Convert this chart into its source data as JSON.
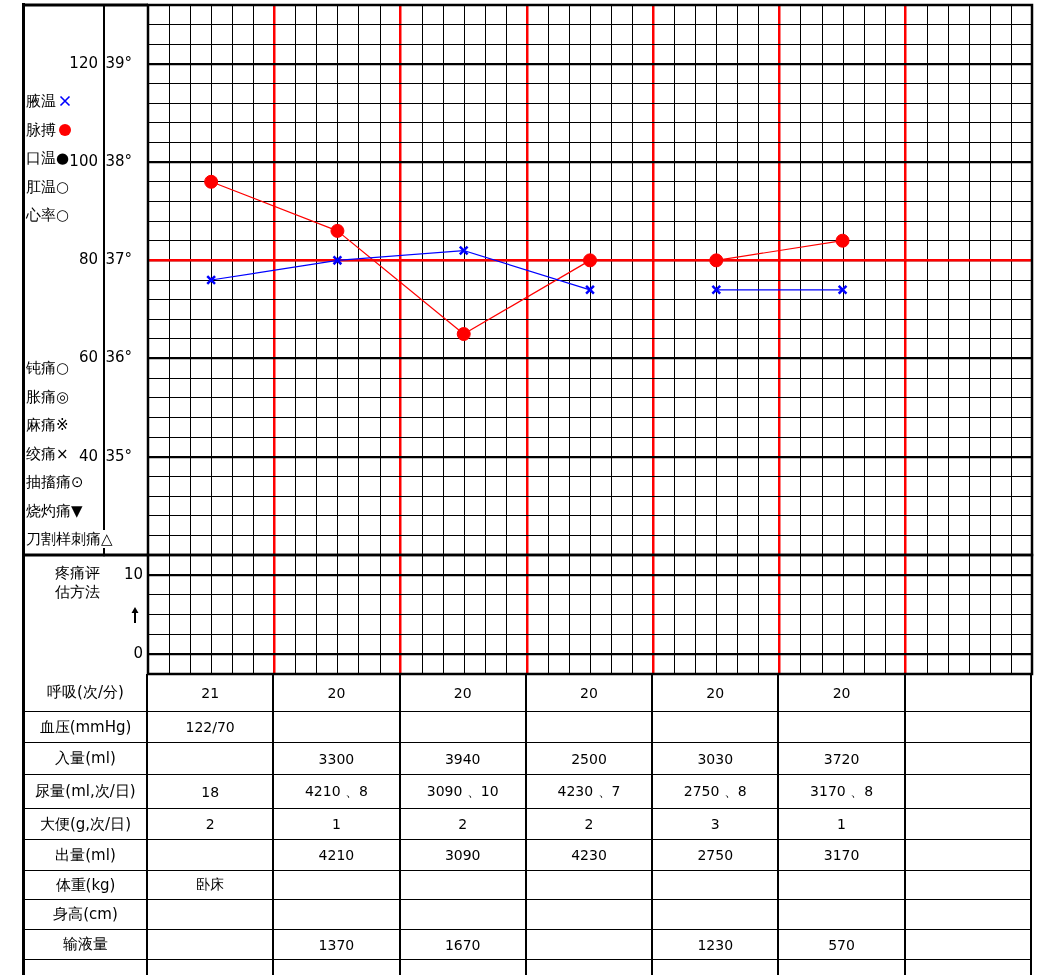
{
  "chart_data": [
    {
      "type": "line",
      "categories": [
        null,
        null,
        null,
        null,
        null,
        null,
        null
      ],
      "ylim": [
        34,
        39.6
      ],
      "yticks": [
        {
          "value": 34,
          "label": null
        },
        {
          "value": 34.2,
          "label": null
        },
        {
          "value": 34.4,
          "label": null
        },
        {
          "value": 34.6,
          "label": null
        },
        {
          "value": 34.8,
          "label": null
        },
        {
          "value": 35,
          "label": "35°"
        },
        {
          "value": 35.2,
          "label": null
        },
        {
          "value": 35.4,
          "label": null
        },
        {
          "value": 35.6,
          "label": null
        },
        {
          "value": 35.8,
          "label": null
        },
        {
          "value": 36,
          "label": "36°"
        },
        {
          "value": 36.2,
          "label": null
        },
        {
          "value": 36.4,
          "label": null
        },
        {
          "value": 36.6,
          "label": null
        },
        {
          "value": 36.8,
          "label": null
        },
        {
          "value": 37,
          "label": "37°"
        },
        {
          "value": 37.2,
          "label": null
        },
        {
          "value": 37.4,
          "label": null
        },
        {
          "value": 37.6,
          "label": null
        },
        {
          "value": 37.8,
          "label": null
        },
        {
          "value": 38,
          "label": "38°"
        },
        {
          "value": 38.2,
          "label": null
        },
        {
          "value": 38.4,
          "label": null
        },
        {
          "value": 38.6,
          "label": null
        },
        {
          "value": 38.8,
          "label": null
        },
        {
          "value": 39,
          "label": "39°"
        },
        {
          "value": 39.2,
          "label": null
        },
        {
          "value": 39.4,
          "label": null
        },
        {
          "value": 39.6,
          "label": null
        }
      ],
      "y2lim": [
        20,
        132
      ],
      "y2ticks": [
        40,
        60,
        80,
        100,
        120
      ],
      "grid": true,
      "legend": "left",
      "ref_lines": [
        {
          "axis": "y",
          "value": 37,
          "color": "#ff0000"
        }
      ],
      "annotations": [
        "口温●",
        "肛温○",
        "心率○"
      ],
      "series": [
        {
          "name": "腋温",
          "color": "#0000ff",
          "marker": "cross",
          "values": [
            36.8,
            37,
            37.1,
            36.7,
            null,
            null,
            null
          ]
        },
        {
          "color": "#0000ff",
          "marker": "cross",
          "values": [
            null,
            null,
            null,
            null,
            36.7,
            36.7,
            null
          ]
        },
        {
          "name": "脉搏",
          "color": "#ff0000",
          "marker": "circle",
          "axis": "y2",
          "values": [
            96,
            86,
            65,
            80,
            null,
            null,
            null
          ]
        },
        {
          "color": "#ff0000",
          "marker": "circle",
          "axis": "y2",
          "values": [
            null,
            null,
            null,
            null,
            80,
            84,
            null
          ]
        }
      ]
    },
    {
      "type": "line",
      "ylabel": "疼痛评估方法",
      "categories": [
        null,
        null,
        null,
        null,
        null,
        null,
        null
      ],
      "ylim": [
        -2.5,
        12.5
      ],
      "yticks": [
        {
          "value": -2.5,
          "label": null
        },
        0,
        {
          "value": 2.5,
          "label": null
        },
        {
          "value": 5,
          "label": null
        },
        {
          "value": 7.5,
          "label": null
        },
        10,
        {
          "value": 12.5,
          "label": null
        }
      ],
      "grid": true,
      "annotations": [
        "钝痛○",
        "胀痛◎",
        "麻痛※",
        "绞痛×",
        "抽搐痛⊙",
        "烧灼痛▼",
        "刀割样刺痛△"
      ]
    },
    {
      "type": "other",
      "categories": [
        null,
        null,
        null,
        null,
        null,
        null,
        null
      ],
      "y_categories": [
        "呼吸(次/分)",
        "血压(mmHg)",
        "入量(ml)",
        "尿量(ml,次/日)",
        "大便(g,次/日)",
        "出量(ml)",
        "体重(kg)",
        "身高(cm)",
        "输液量",
        null
      ],
      "cell_labels": [
        [
          "21",
          "20",
          "20",
          "20",
          "20",
          "20",
          null
        ],
        [
          "122/70",
          null,
          null,
          null,
          null,
          null,
          null
        ],
        [
          null,
          "3300",
          "3940",
          "2500",
          "3030",
          "3720",
          null
        ],
        [
          "18",
          "4210 、8",
          "3090 、10",
          "4230 、7",
          "2750 、8",
          "3170 、8",
          null
        ],
        [
          "2",
          "1",
          "2",
          "2",
          "3",
          "1",
          null
        ],
        [
          null,
          "4210",
          "3090",
          "4230",
          "2750",
          "3170",
          null
        ],
        [
          "卧床",
          null,
          null,
          null,
          null,
          null,
          null
        ],
        [
          null,
          null,
          null,
          null,
          null,
          null,
          null
        ],
        [
          null,
          "1370",
          "1670",
          null,
          "1230",
          "570",
          null
        ],
        [
          null,
          null,
          null,
          null,
          null,
          null,
          null
        ]
      ]
    }
  ]
}
